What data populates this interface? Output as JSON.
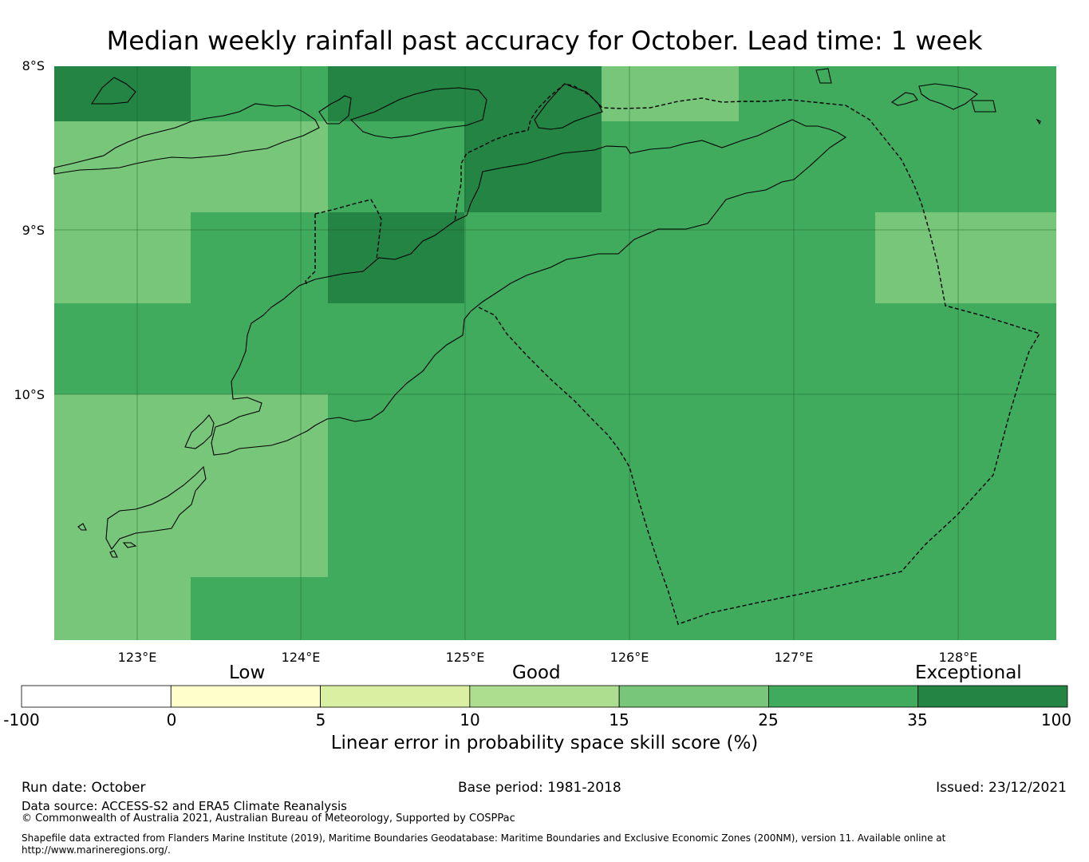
{
  "title": "Median weekly rainfall past accuracy for October. Lead time: 1 week",
  "latitude_labels": [
    "8°S",
    "9°S",
    "10°S"
  ],
  "longitude_labels": [
    "123°E",
    "124°E",
    "125°E",
    "126°E",
    "127°E",
    "128°E"
  ],
  "skill_categories": [
    "Low",
    "Good",
    "Exceptional"
  ],
  "colorbar": {
    "title": "Linear error in probability space skill score (%)",
    "tick_labels": [
      "-100",
      "0",
      "5",
      "10",
      "15",
      "25",
      "35",
      "100"
    ],
    "colors": [
      "#ffffff",
      "#ffffcc",
      "#d9f0a3",
      "#addd8e",
      "#78c679",
      "#41ab5d",
      "#238443"
    ]
  },
  "footer": {
    "run_date": "Run date: October",
    "base_period": "Base period: 1981-2018",
    "issued": "Issued: 23/12/2021",
    "data_source": "Data source: ACCESS-S2 and ERA5 Climate Reanalysis",
    "copyright": "© Commonwealth of Australia 2021, Australian Bureau of Meteorology, Supported by COSPPac",
    "shapefile_line1": "Shapefile data extracted from Flanders Marine Institute (2019), Maritime Boundaries Geodatabase: Maritime Boundaries and Exclusive Economic Zones (200NM), version 11. Available online at",
    "shapefile_line2": "http://www.marineregions.org/."
  },
  "grid": {
    "lon_range": [
      122.5,
      128.6
    ],
    "lat_range": [
      -11.5,
      -8.0
    ],
    "category_index_legend": "4 = 15-25, 5 = 25-35, 6 = 35-100",
    "cells": [
      [
        6,
        5,
        6,
        6,
        4,
        5,
        5
      ],
      [
        4,
        4,
        5,
        6,
        5,
        5,
        5
      ],
      [
        4,
        5,
        6,
        5,
        5,
        5,
        4
      ],
      [
        5,
        5,
        5,
        5,
        5,
        5,
        5
      ],
      [
        4,
        4,
        5,
        5,
        5,
        5,
        5
      ],
      [
        4,
        4,
        5,
        5,
        5,
        5,
        5
      ],
      [
        4,
        5,
        5,
        5,
        5,
        5,
        5
      ]
    ]
  }
}
